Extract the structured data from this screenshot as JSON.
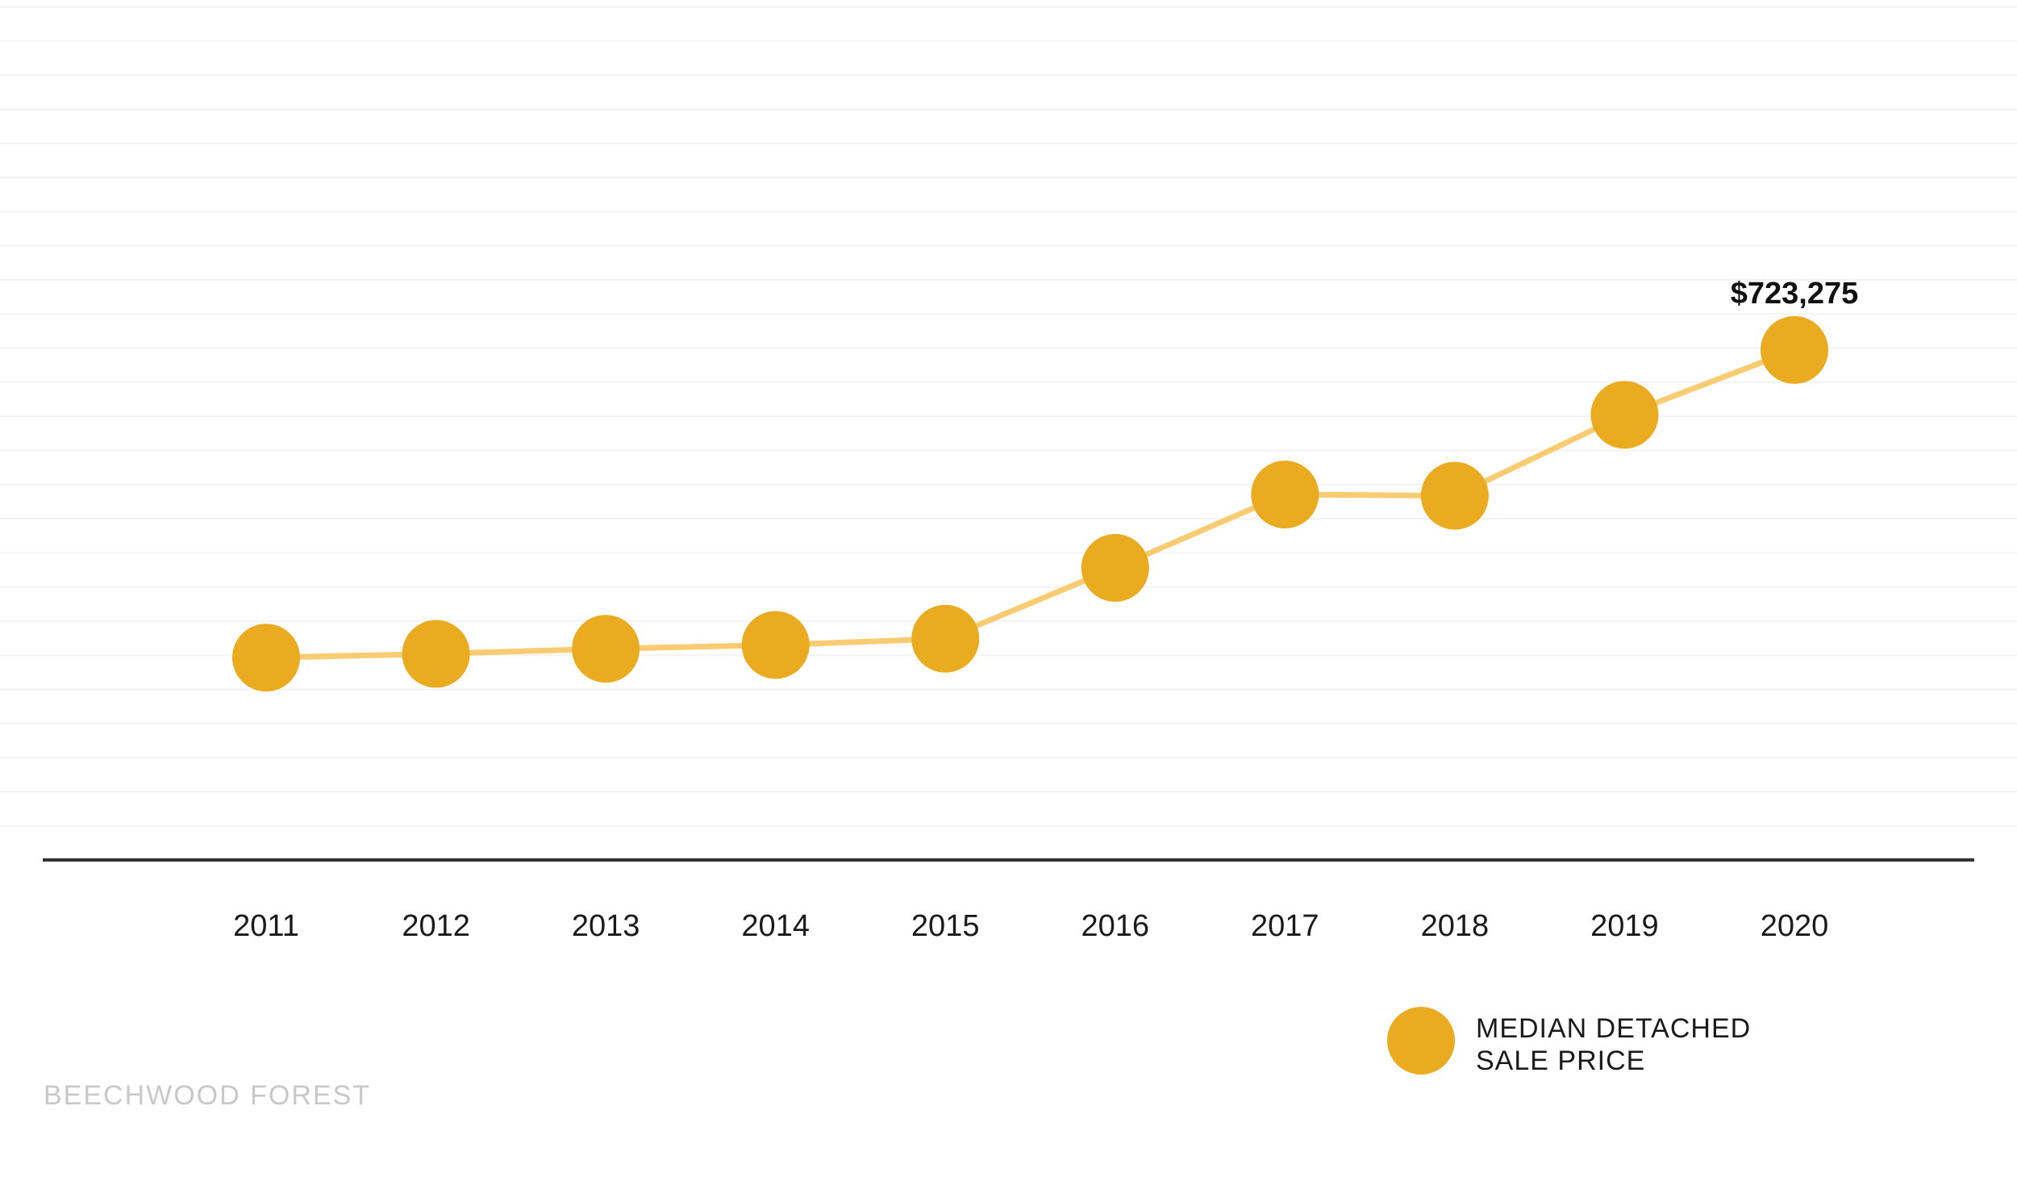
{
  "chart_data": {
    "type": "line",
    "title": "",
    "xlabel": "",
    "ylabel": "",
    "categories": [
      "2011",
      "2012",
      "2013",
      "2014",
      "2015",
      "2016",
      "2017",
      "2018",
      "2019",
      "2020"
    ],
    "series": [
      {
        "name": "MEDIAN DETACHED SALE PRICE",
        "values": [
          480000,
          483000,
          487000,
          490000,
          495000,
          551000,
          609000,
          608000,
          672000,
          723275
        ]
      }
    ],
    "ylim": [
      320000,
      1000000
    ],
    "grid": true,
    "annotations": [
      {
        "category": "2020",
        "text": "$723,275"
      }
    ],
    "legend": {
      "placement": "bottom-right",
      "lines": [
        "MEDIAN DETACHED",
        "SALE PRICE"
      ]
    },
    "colors": {
      "marker": "#ebab21",
      "line": "#f9cc73",
      "grid": "#f3f3f3",
      "axis": "#333333"
    }
  },
  "footer": {
    "brand": "BEECHWOOD FOREST"
  }
}
